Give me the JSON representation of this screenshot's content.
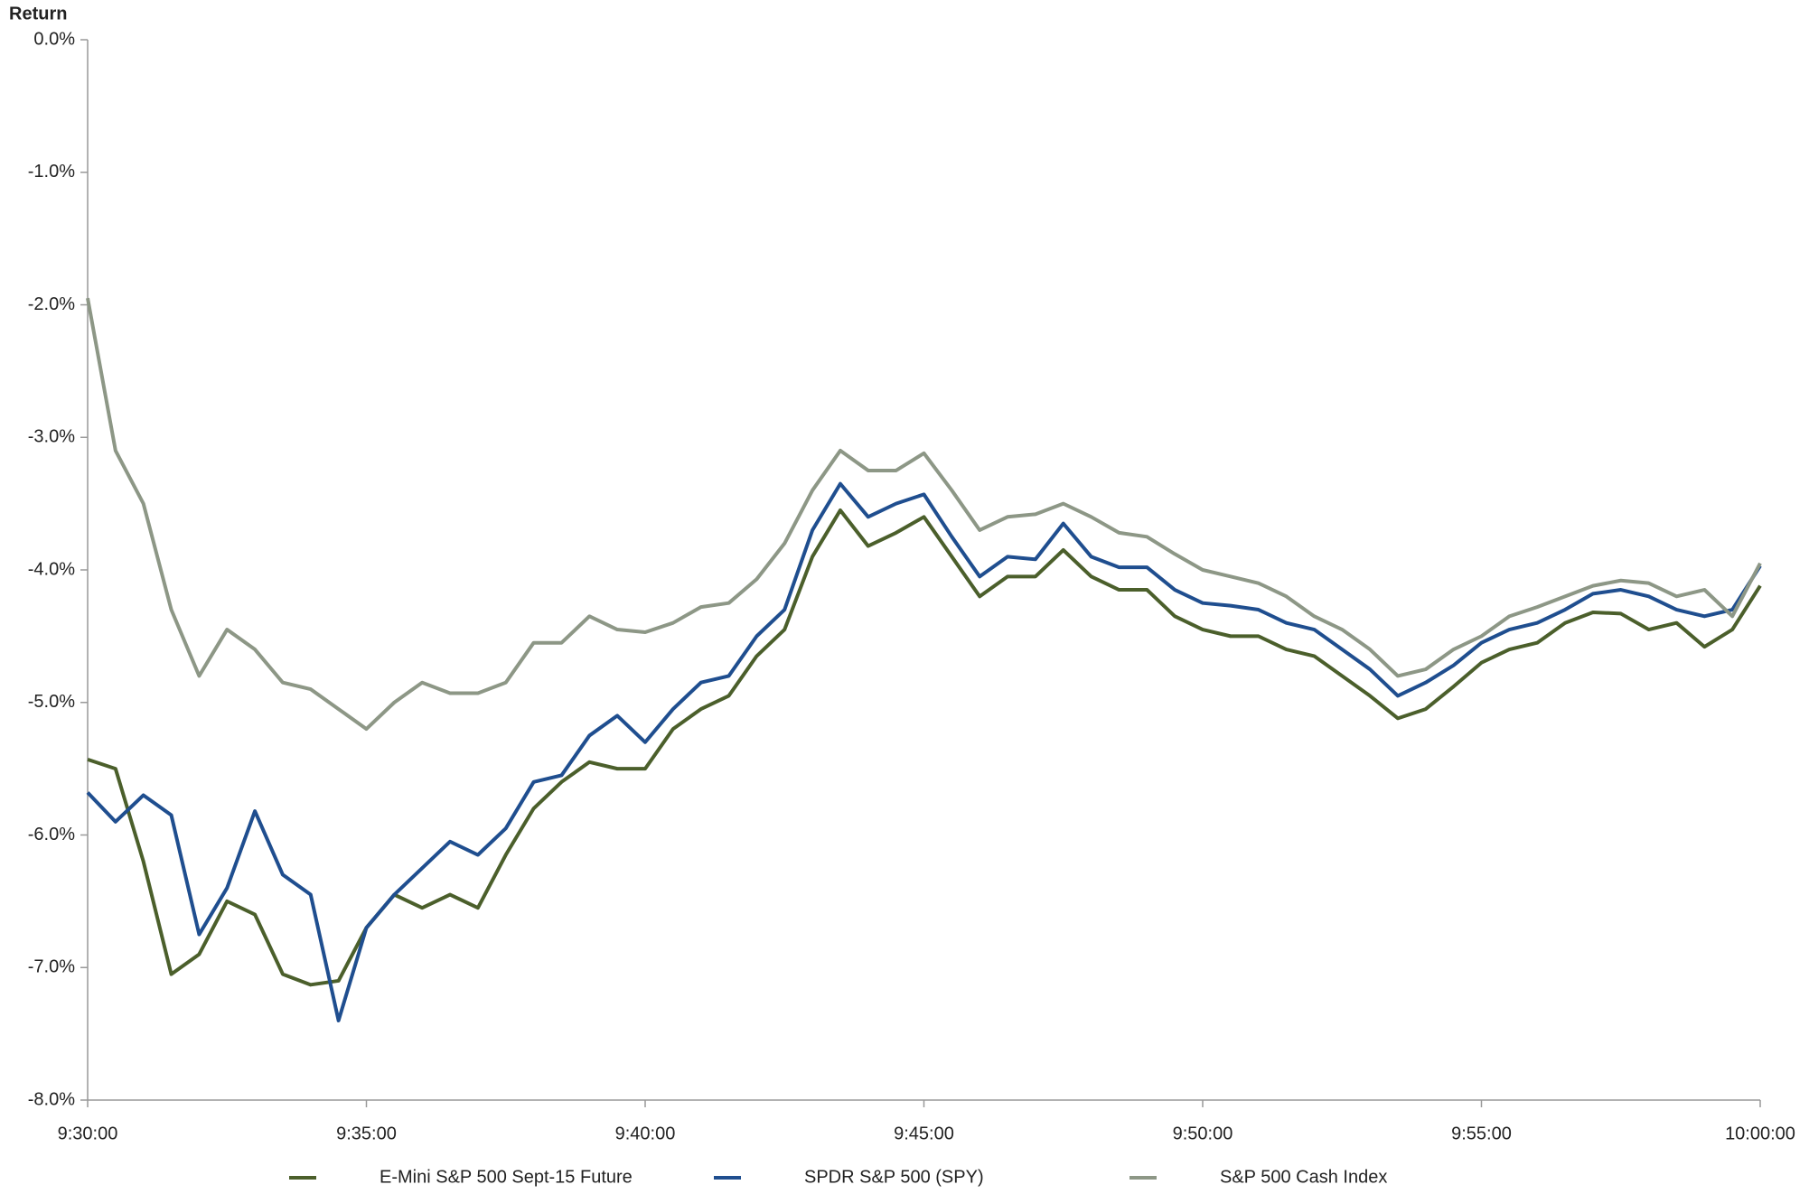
{
  "chart_data": {
    "type": "line",
    "y_label": "Return",
    "x": [
      "9:30:00",
      "9:30:30",
      "9:31:00",
      "9:31:30",
      "9:32:00",
      "9:32:30",
      "9:33:00",
      "9:33:30",
      "9:34:00",
      "9:34:30",
      "9:35:00",
      "9:35:30",
      "9:36:00",
      "9:36:30",
      "9:37:00",
      "9:37:30",
      "9:38:00",
      "9:38:30",
      "9:39:00",
      "9:39:30",
      "9:40:00",
      "9:40:30",
      "9:41:00",
      "9:41:30",
      "9:42:00",
      "9:42:30",
      "9:43:00",
      "9:43:30",
      "9:44:00",
      "9:44:30",
      "9:45:00",
      "9:45:30",
      "9:46:00",
      "9:46:30",
      "9:47:00",
      "9:47:30",
      "9:48:00",
      "9:48:30",
      "9:49:00",
      "9:49:30",
      "9:50:00",
      "9:50:30",
      "9:51:00",
      "9:51:30",
      "9:52:00",
      "9:52:30",
      "9:53:00",
      "9:53:30",
      "9:54:00",
      "9:54:30",
      "9:55:00",
      "9:55:30",
      "9:56:00",
      "9:56:30",
      "9:57:00",
      "9:57:30",
      "9:58:00",
      "9:58:30",
      "9:59:00",
      "9:59:30",
      "10:00:00"
    ],
    "xlim": [
      "9:30:00",
      "10:00:00"
    ],
    "xticks": [
      "9:30:00",
      "9:35:00",
      "9:40:00",
      "9:45:00",
      "9:50:00",
      "9:55:00",
      "10:00:00"
    ],
    "ylim": [
      -8,
      0
    ],
    "yticks": [
      {
        "value": 0,
        "label": "0.0%"
      },
      {
        "value": -1,
        "label": "-1.0%"
      },
      {
        "value": -2,
        "label": "-2.0%"
      },
      {
        "value": -3,
        "label": "-3.0%"
      },
      {
        "value": -4,
        "label": "-4.0%"
      },
      {
        "value": -5,
        "label": "-5.0%"
      },
      {
        "value": -6,
        "label": "-6.0%"
      },
      {
        "value": -7,
        "label": "-7.0%"
      },
      {
        "value": -8,
        "label": "-8.0%"
      }
    ],
    "grid": false,
    "legend": "bottom",
    "series": [
      {
        "name": "E-Mini S&P 500 Sept-15 Future",
        "color": "#4b5f2b",
        "values": [
          -5.43,
          -5.5,
          -6.2,
          -7.05,
          -6.9,
          -6.5,
          -6.6,
          -7.05,
          -7.13,
          -7.1,
          -6.7,
          -6.45,
          -6.55,
          -6.45,
          -6.55,
          -6.15,
          -5.8,
          -5.6,
          -5.45,
          -5.5,
          -5.5,
          -5.2,
          -5.05,
          -4.95,
          -4.65,
          -4.45,
          -3.9,
          -3.55,
          -3.82,
          -3.72,
          -3.6,
          -3.9,
          -4.2,
          -4.05,
          -4.05,
          -3.85,
          -4.05,
          -4.15,
          -4.15,
          -4.35,
          -4.45,
          -4.5,
          -4.5,
          -4.6,
          -4.65,
          -4.8,
          -4.95,
          -5.12,
          -5.05,
          -4.88,
          -4.7,
          -4.6,
          -4.55,
          -4.4,
          -4.32,
          -4.33,
          -4.45,
          -4.4,
          -4.58,
          -4.45,
          -4.12
        ]
      },
      {
        "name": "SPDR S&P 500 (SPY)",
        "color": "#1f4e8f",
        "values": [
          -5.68,
          -5.9,
          -5.7,
          -5.85,
          -6.75,
          -6.4,
          -5.82,
          -6.3,
          -6.45,
          -7.4,
          -6.7,
          -6.45,
          -6.25,
          -6.05,
          -6.15,
          -5.95,
          -5.6,
          -5.55,
          -5.25,
          -5.1,
          -5.3,
          -5.05,
          -4.85,
          -4.8,
          -4.5,
          -4.3,
          -3.7,
          -3.35,
          -3.6,
          -3.5,
          -3.43,
          -3.75,
          -4.05,
          -3.9,
          -3.92,
          -3.65,
          -3.9,
          -3.98,
          -3.98,
          -4.15,
          -4.25,
          -4.27,
          -4.3,
          -4.4,
          -4.45,
          -4.6,
          -4.75,
          -4.95,
          -4.85,
          -4.72,
          -4.55,
          -4.45,
          -4.4,
          -4.3,
          -4.18,
          -4.15,
          -4.2,
          -4.3,
          -4.35,
          -4.3,
          -3.97
        ]
      },
      {
        "name": "S&P 500 Cash Index",
        "color": "#8d9786",
        "values": [
          -1.95,
          -3.1,
          -3.5,
          -4.3,
          -4.8,
          -4.45,
          -4.6,
          -4.85,
          -4.9,
          -5.05,
          -5.2,
          -5.0,
          -4.85,
          -4.93,
          -4.93,
          -4.85,
          -4.55,
          -4.55,
          -4.35,
          -4.45,
          -4.47,
          -4.4,
          -4.28,
          -4.25,
          -4.07,
          -3.8,
          -3.4,
          -3.1,
          -3.25,
          -3.25,
          -3.12,
          -3.4,
          -3.7,
          -3.6,
          -3.58,
          -3.5,
          -3.6,
          -3.72,
          -3.75,
          -3.88,
          -4.0,
          -4.05,
          -4.1,
          -4.2,
          -4.35,
          -4.45,
          -4.6,
          -4.8,
          -4.75,
          -4.6,
          -4.5,
          -4.35,
          -4.28,
          -4.2,
          -4.12,
          -4.08,
          -4.1,
          -4.2,
          -4.15,
          -4.35,
          -3.95
        ]
      }
    ]
  }
}
